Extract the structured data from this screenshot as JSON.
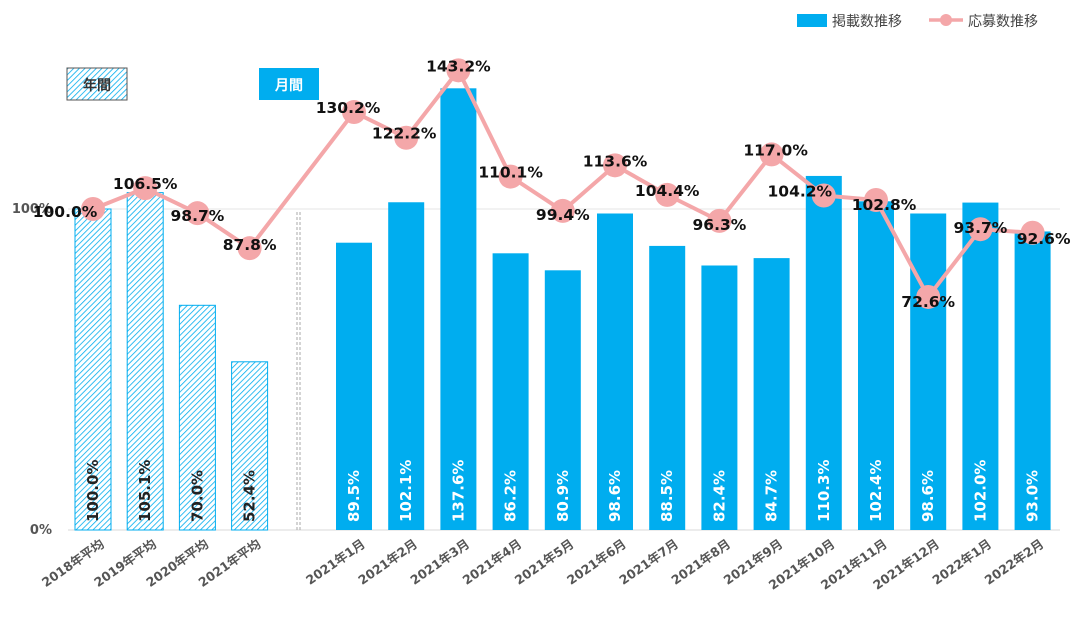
{
  "chart_data": {
    "type": "bar+line",
    "categories": [
      "2018年平均",
      "2019年平均",
      "2020年平均",
      "2021年平均",
      "2021年1月",
      "2021年2月",
      "2021年3月",
      "2021年4月",
      "2021年5月",
      "2021年6月",
      "2021年7月",
      "2021年8月",
      "2021年9月",
      "2021年10月",
      "2021年11月",
      "2021年12月",
      "2022年1月",
      "2022年2月"
    ],
    "groups": {
      "annual": "年間",
      "monthly": "月間"
    },
    "series": [
      {
        "name": "掲載数推移",
        "kind": "bar",
        "color": "#00ADEF",
        "values": [
          100.0,
          105.1,
          70.0,
          52.4,
          89.5,
          102.1,
          137.6,
          86.2,
          80.9,
          98.6,
          88.5,
          82.4,
          84.7,
          110.3,
          102.4,
          98.6,
          102.0,
          93.0
        ]
      },
      {
        "name": "応募数推移",
        "kind": "line",
        "color": "#F4A7A9",
        "values": [
          100.0,
          106.5,
          98.7,
          87.8,
          130.2,
          122.2,
          143.2,
          110.1,
          99.4,
          113.6,
          104.4,
          96.3,
          117.0,
          104.2,
          102.8,
          72.6,
          93.7,
          92.6
        ]
      }
    ],
    "y_ticks": [
      "0%",
      "100%"
    ],
    "ylim": [
      0,
      155
    ],
    "value_suffix": "%",
    "annual_count": 4
  }
}
